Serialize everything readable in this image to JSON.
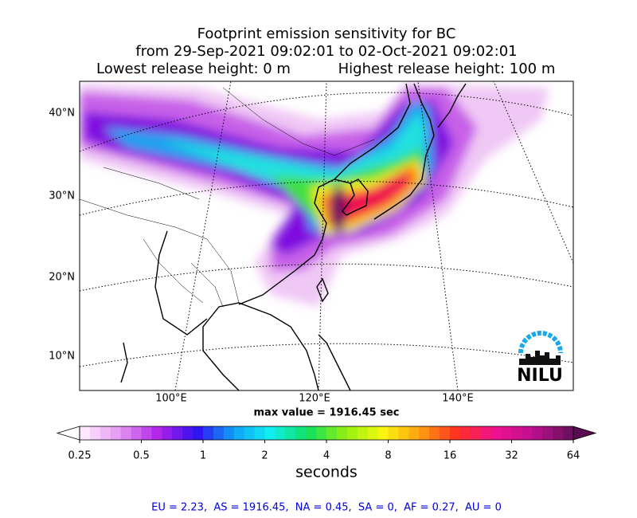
{
  "title": [
    "Footprint emission sensitivity for BC",
    "from 29-Sep-2021 09:02:01 to 02-Oct-2021 09:02:01"
  ],
  "release": {
    "lowest": "Lowest release height: 0 m",
    "highest": "Highest release height: 100 m"
  },
  "map": {
    "lat_labels": [
      "40°N",
      "30°N",
      "20°N",
      "10°N"
    ],
    "lon_labels": [
      "100°E",
      "120°E",
      "140°E"
    ],
    "max_value": "max value = 1916.45 sec",
    "logo": "NILU"
  },
  "colorbar": {
    "ticks": [
      0.25,
      0.5,
      1,
      2,
      4,
      8,
      16,
      32,
      64
    ],
    "label": "seconds",
    "log_scale": true
  },
  "footer": "EU = 2.23,  AS = 1916.45,  NA = 0.45,  SA = 0,  AF = 0.27,  AU = 0"
}
